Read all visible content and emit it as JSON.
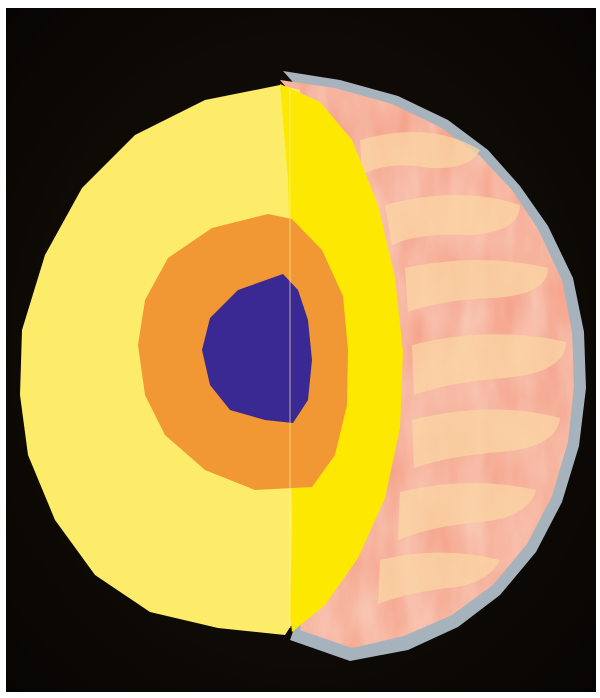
{
  "colors": {
    "frame": "#ffffff",
    "background": "#0f0905",
    "outer_layer": "#fdec6a",
    "middle_layer": "#f19733",
    "core": "#3a2893",
    "cut_face": "#fde801",
    "surface": "#f5a48d",
    "surface_bands": "#fbd6a3",
    "rim": "#a6b3bd"
  },
  "icons": {
    "subject": "planet-interior-cutaway-icon"
  }
}
